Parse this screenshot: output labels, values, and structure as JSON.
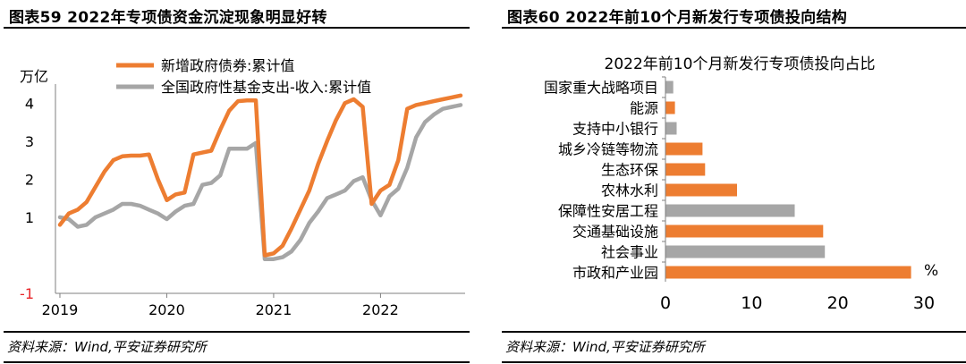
{
  "left": {
    "fig_title": "图表59 2022年专项债资金沉淀现象明显好转",
    "source": "资料来源：Wind,平安证券研究所",
    "chart_data": {
      "type": "line",
      "unit": "万亿",
      "ylim": [
        -1,
        4.5
      ],
      "y_ticks": [
        {
          "value": -1,
          "label": "-1",
          "color": "#e8262a"
        },
        {
          "value": 1,
          "label": "1",
          "color": "#000000"
        },
        {
          "value": 2,
          "label": "2",
          "color": "#000000"
        },
        {
          "value": 3,
          "label": "3",
          "color": "#000000"
        },
        {
          "value": 4,
          "label": "4",
          "color": "#000000"
        }
      ],
      "x_ticks": [
        {
          "x": 0,
          "label": "2019"
        },
        {
          "x": 12,
          "label": "2020"
        },
        {
          "x": 24,
          "label": "2021"
        },
        {
          "x": 36,
          "label": "2022"
        }
      ],
      "xlim": [
        -0.5,
        45.5
      ],
      "series": [
        {
          "name": "新增政府债券:累计值",
          "color": "#ed7d31",
          "x": [
            0,
            1,
            2,
            3,
            4,
            5,
            6,
            7,
            8,
            9,
            10,
            11,
            12,
            13,
            14,
            15,
            16,
            17,
            18,
            19,
            20,
            21,
            22,
            23,
            24,
            25,
            26,
            27,
            28,
            29,
            30,
            31,
            32,
            33,
            34,
            35,
            36,
            37,
            38,
            39,
            40,
            41,
            42,
            43,
            44,
            45
          ],
          "values": [
            0.8,
            1.1,
            1.2,
            1.4,
            1.8,
            2.2,
            2.5,
            2.6,
            2.62,
            2.62,
            2.65,
            2.0,
            1.45,
            1.6,
            1.65,
            2.65,
            2.7,
            2.75,
            3.3,
            3.8,
            4.05,
            4.07,
            4.07,
            0.0,
            0.05,
            0.25,
            0.7,
            1.2,
            1.7,
            2.4,
            3.0,
            3.55,
            4.0,
            4.1,
            3.9,
            1.35,
            1.7,
            1.85,
            2.5,
            3.85,
            3.95,
            4.0,
            4.05,
            4.1,
            4.15,
            4.2
          ]
        },
        {
          "name": "全国政府性基金支出-收入:累计值",
          "color": "#a6a6a6",
          "x": [
            0,
            1,
            2,
            3,
            4,
            5,
            6,
            7,
            8,
            9,
            10,
            11,
            12,
            13,
            14,
            15,
            16,
            17,
            18,
            19,
            20,
            21,
            22,
            23,
            24,
            25,
            26,
            27,
            28,
            29,
            30,
            31,
            32,
            33,
            34,
            35,
            36,
            37,
            38,
            39,
            40,
            41,
            42,
            43,
            44,
            45
          ],
          "values": [
            1.0,
            0.95,
            0.75,
            0.8,
            1.0,
            1.1,
            1.2,
            1.35,
            1.35,
            1.3,
            1.2,
            1.1,
            0.95,
            1.15,
            1.3,
            1.35,
            1.85,
            1.9,
            2.1,
            2.8,
            2.8,
            2.8,
            2.95,
            -0.1,
            -0.1,
            -0.05,
            0.1,
            0.4,
            0.85,
            1.15,
            1.5,
            1.6,
            1.7,
            1.95,
            2.05,
            1.45,
            1.05,
            1.55,
            1.75,
            2.3,
            3.1,
            3.5,
            3.7,
            3.85,
            3.9,
            3.95
          ]
        }
      ],
      "legend_position": "top-center"
    }
  },
  "right": {
    "fig_title": "图表60 2022年前10个月新发行专项债投向结构",
    "source": "资料来源：Wind,平安证券研究所",
    "chart_data": {
      "type": "bar",
      "orientation": "horizontal",
      "title": "2022年前10个月新发行专项债投向占比",
      "unit": "%",
      "xlim": [
        0,
        30
      ],
      "x_ticks": [
        0,
        10,
        20,
        30
      ],
      "categories": [
        "国家重大战略项目",
        "能源",
        "支持中小银行",
        "城乡冷链等物流",
        "生态环保",
        "农林水利",
        "保障性安居工程",
        "交通基础设施",
        "社会事业",
        "市政和产业园"
      ],
      "values": [
        0.9,
        1.1,
        1.3,
        4.3,
        4.6,
        8.3,
        15.0,
        18.3,
        18.5,
        28.5
      ],
      "colors": [
        "#a6a6a6",
        "#ed7d31",
        "#a6a6a6",
        "#ed7d31",
        "#ed7d31",
        "#ed7d31",
        "#a6a6a6",
        "#ed7d31",
        "#a6a6a6",
        "#ed7d31"
      ]
    }
  }
}
